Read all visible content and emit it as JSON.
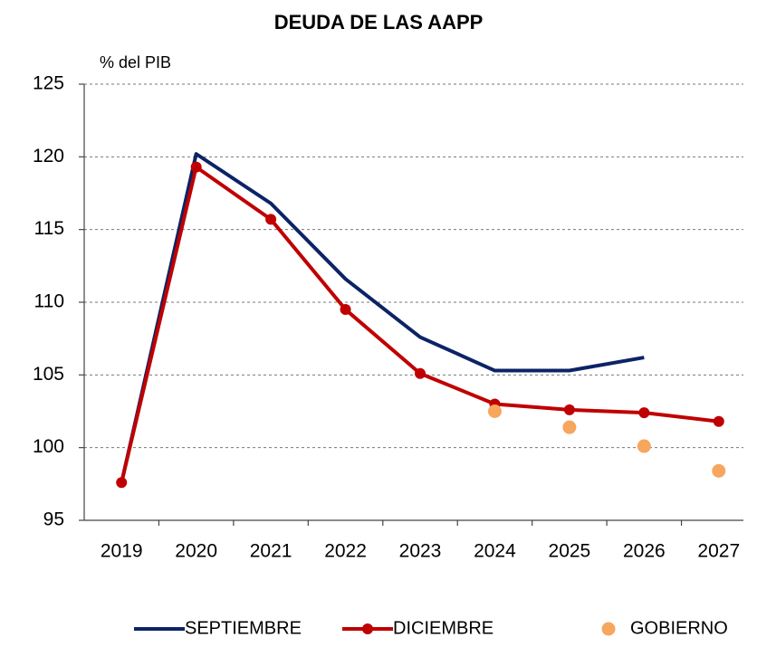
{
  "chart_data": {
    "type": "line",
    "title": "DEUDA DE LAS AAPP",
    "y_label": "% del PIB",
    "categories": [
      "2019",
      "2020",
      "2021",
      "2022",
      "2023",
      "2024",
      "2025",
      "2026",
      "2027"
    ],
    "series": [
      {
        "name": "SEPTIEMBRE",
        "color": "#0c2365",
        "line": true,
        "markers": false,
        "values": [
          97.6,
          120.2,
          116.8,
          111.6,
          107.6,
          105.3,
          105.3,
          106.2,
          null
        ]
      },
      {
        "name": "DICIEMBRE",
        "color": "#c00000",
        "line": true,
        "markers": true,
        "values": [
          97.6,
          119.3,
          115.7,
          109.5,
          105.1,
          103.0,
          102.6,
          102.4,
          101.8
        ]
      },
      {
        "name": "GOBIERNO",
        "color": "#f7a65e",
        "line": false,
        "markers": true,
        "values": [
          null,
          null,
          null,
          null,
          null,
          102.5,
          101.4,
          100.1,
          98.4
        ]
      }
    ],
    "ylim": [
      95,
      125
    ],
    "yticks": [
      95,
      100,
      105,
      110,
      115,
      120,
      125
    ],
    "grid": true
  }
}
